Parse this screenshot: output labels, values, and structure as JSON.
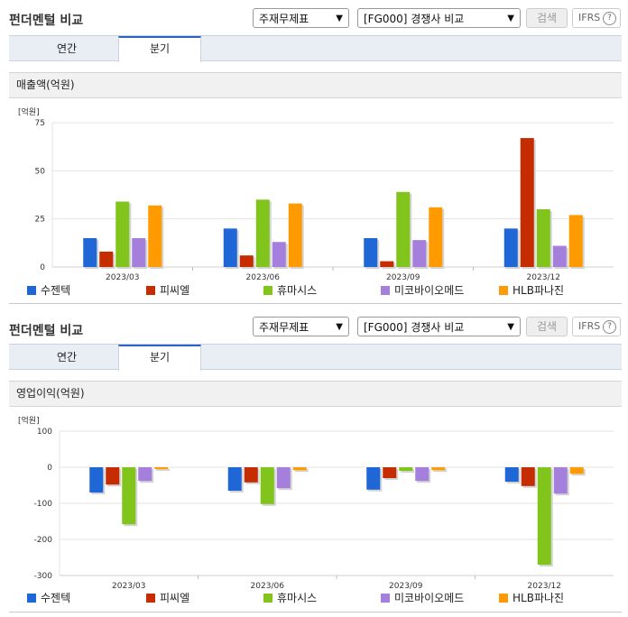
{
  "panels": [
    {
      "title": "펀더멘털 비교",
      "select1": "주재무제표",
      "select2": "[FG000] 경쟁사 비교",
      "search_label": "검색",
      "ifrs_label": "IFRS",
      "help_glyph": "?",
      "tabs": [
        "연간",
        "분기"
      ],
      "active_tab": "분기",
      "section_title": "매출액(억원)",
      "unit": "[억원]"
    },
    {
      "title": "펀더멘털 비교",
      "select1": "주재무제표",
      "select2": "[FG000] 경쟁사 비교",
      "search_label": "검색",
      "ifrs_label": "IFRS",
      "help_glyph": "?",
      "tabs": [
        "연간",
        "분기"
      ],
      "active_tab": "분기",
      "section_title": "영업이익(억원)",
      "unit": "[억원]"
    }
  ],
  "icons": {
    "dropdown": "chevron-down-icon",
    "help": "help-circle-icon"
  },
  "chart_data": [
    {
      "type": "bar",
      "title": "매출액(억원)",
      "ylabel": "[억원]",
      "categories": [
        "2023/03",
        "2023/06",
        "2023/09",
        "2023/12"
      ],
      "ylim": [
        0,
        75
      ],
      "yticks": [
        0,
        25,
        50,
        75
      ],
      "grid": true,
      "legend": "bottom",
      "series": [
        {
          "name": "수젠텍",
          "color": "#1f66d6",
          "values": [
            15,
            20,
            15,
            20
          ]
        },
        {
          "name": "피씨엘",
          "color": "#c52c00",
          "values": [
            8,
            6,
            3,
            67
          ]
        },
        {
          "name": "휴마시스",
          "color": "#80c41c",
          "values": [
            34,
            35,
            39,
            30
          ]
        },
        {
          "name": "미코바이오메드",
          "color": "#a57fdc",
          "values": [
            15,
            13,
            14,
            11
          ]
        },
        {
          "name": "HLB파나진",
          "color": "#ff9a00",
          "values": [
            32,
            33,
            31,
            27
          ]
        }
      ]
    },
    {
      "type": "bar",
      "title": "영업이익(억원)",
      "ylabel": "[억원]",
      "categories": [
        "2023/03",
        "2023/06",
        "2023/09",
        "2023/12"
      ],
      "ylim": [
        -300,
        100
      ],
      "yticks": [
        100,
        0,
        -100,
        -200,
        -300
      ],
      "grid": true,
      "legend": "bottom",
      "series": [
        {
          "name": "수젠텍",
          "color": "#1f66d6",
          "values": [
            -70,
            -65,
            -62,
            -40
          ]
        },
        {
          "name": "피씨엘",
          "color": "#c52c00",
          "values": [
            -48,
            -42,
            -30,
            -52
          ]
        },
        {
          "name": "휴마시스",
          "color": "#80c41c",
          "values": [
            -158,
            -102,
            -10,
            -270
          ]
        },
        {
          "name": "미코바이오메드",
          "color": "#a57fdc",
          "values": [
            -38,
            -58,
            -38,
            -73
          ]
        },
        {
          "name": "HLB파나진",
          "color": "#ff9a00",
          "values": [
            -5,
            -8,
            -8,
            -18
          ]
        }
      ]
    }
  ]
}
